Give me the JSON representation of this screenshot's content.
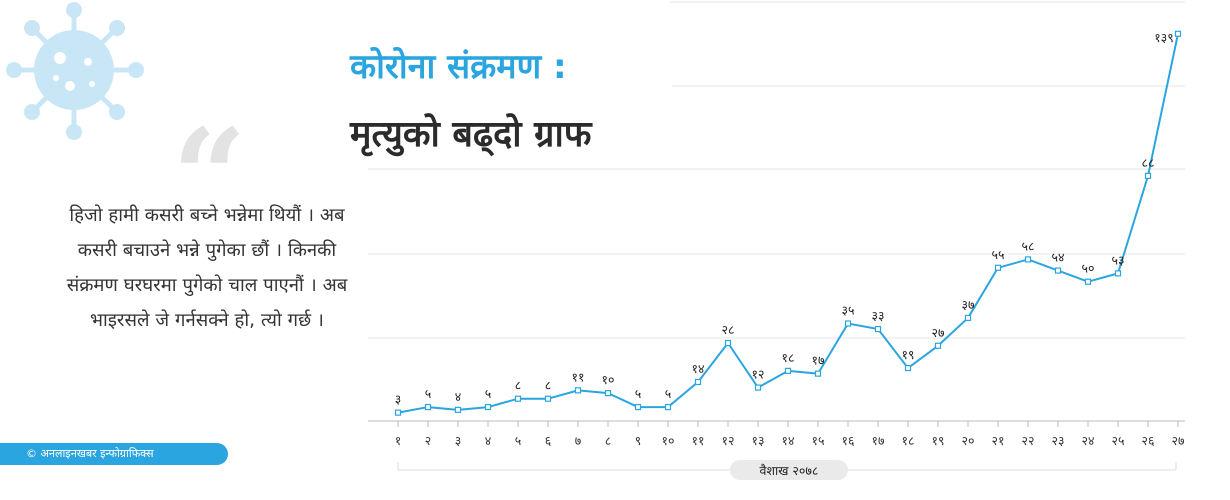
{
  "header": {
    "title_line1": "कोरोना संक्रमण :",
    "title_line2": "मृत्युको बढ्दो ग्राफ"
  },
  "quote": {
    "text": "हिजो हामी कसरी बच्ने भन्नेमा थियौं । अब कसरी बचाउने भन्ने पुगेका छौं । किनकी संक्रमण घरघरमा पुगेको चाल पाएनौं । अब भाइरसले जे गर्नसक्ने हो, त्यो गर्छ ।"
  },
  "credit": "© अनलाइनखबर इन्फोग्राफिक्स",
  "colors": {
    "accent": "#2aa5e0",
    "dark_text": "#2b2b2b",
    "grid": "#e6e6e6"
  },
  "chart_data": {
    "type": "line",
    "title": "",
    "xlabel": "वैशाख २०७८",
    "ylabel": "",
    "categories": [
      "१",
      "२",
      "३",
      "४",
      "५",
      "६",
      "७",
      "८",
      "९",
      "१०",
      "११",
      "१२",
      "१३",
      "१४",
      "१५",
      "१६",
      "१७",
      "१८",
      "१९",
      "२०",
      "२१",
      "२२",
      "२३",
      "२४",
      "२५",
      "२६",
      "२७"
    ],
    "series": [
      {
        "name": "",
        "values": [
          3,
          5,
          4,
          5,
          8,
          8,
          11,
          10,
          5,
          5,
          14,
          28,
          12,
          18,
          17,
          35,
          33,
          19,
          27,
          37,
          55,
          58,
          54,
          50,
          53,
          88,
          139
        ],
        "labels": [
          "३",
          "५",
          "४",
          "५",
          "८",
          "८",
          "११",
          "१०",
          "५",
          "५",
          "१४",
          "२८",
          "१२",
          "१८",
          "१७",
          "३५",
          "३३",
          "१९",
          "२७",
          "३७",
          "५५",
          "५८",
          "५४",
          "५०",
          "५३",
          "८८",
          "१३९"
        ]
      }
    ],
    "ylim": [
      0,
      140
    ],
    "grid": true,
    "legend": "none"
  }
}
